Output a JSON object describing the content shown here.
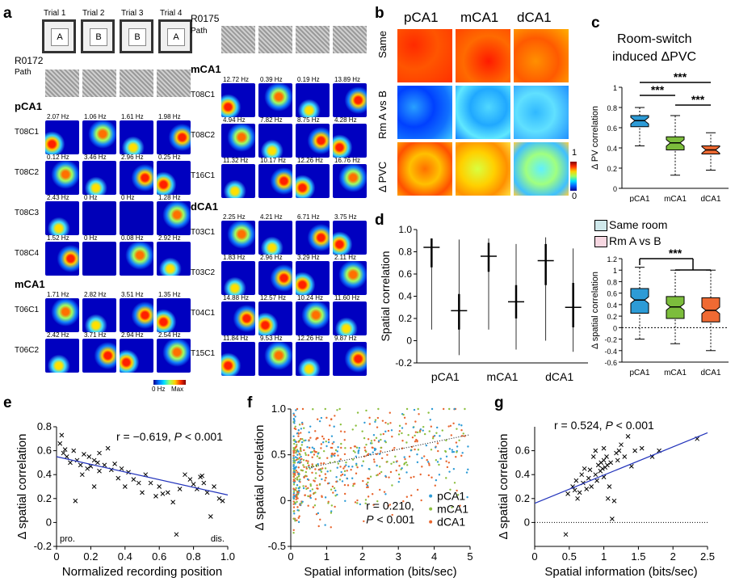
{
  "panel_a": {
    "label": "a",
    "trials": [
      {
        "name": "Trial 1",
        "room": "A"
      },
      {
        "name": "Trial 2",
        "room": "B"
      },
      {
        "name": "Trial 3",
        "room": "B"
      },
      {
        "name": "Trial 4",
        "room": "A"
      }
    ],
    "rat_left": "R0172",
    "rat_right": "R0175",
    "path_label": "Path",
    "colorbar_min": "0 Hz",
    "colorbar_max": "Max",
    "left_groups": [
      {
        "region": "pCA1",
        "cells": [
          {
            "id": "T08C1",
            "rates": [
              "2.07 Hz",
              "1.06 Hz",
              "1.61 Hz",
              "1.98 Hz"
            ]
          },
          {
            "id": "T08C2",
            "rates": [
              "0.12 Hz",
              "3.46 Hz",
              "2.96 Hz",
              "0.25 Hz"
            ]
          },
          {
            "id": "T08C3",
            "rates": [
              "2.43 Hz",
              "0 Hz",
              "0 Hz",
              "1.28 Hz"
            ]
          },
          {
            "id": "T08C4",
            "rates": [
              "1.52 Hz",
              "0 Hz",
              "0.08 Hz",
              "2.92 Hz"
            ]
          }
        ]
      },
      {
        "region": "mCA1",
        "cells": [
          {
            "id": "T06C1",
            "rates": [
              "1.71 Hz",
              "2.82 Hz",
              "3.51 Hz",
              "1.35 Hz"
            ]
          },
          {
            "id": "T06C2",
            "rates": [
              "2.42 Hz",
              "3.71 Hz",
              "2.94 Hz",
              "2.54 Hz"
            ]
          }
        ]
      }
    ],
    "right_groups": [
      {
        "region": "mCA1",
        "cells": [
          {
            "id": "T08C1",
            "rates": [
              "12.72 Hz",
              "0.39 Hz",
              "0.19 Hz",
              "13.89 Hz"
            ]
          },
          {
            "id": "T08C2",
            "rates": [
              "4.94 Hz",
              "7.82 Hz",
              "8.75 Hz",
              "4.28 Hz"
            ]
          },
          {
            "id": "T16C1",
            "rates": [
              "11.32 Hz",
              "10.17 Hz",
              "12.26 Hz",
              "16.76 Hz"
            ]
          }
        ]
      },
      {
        "region": "dCA1",
        "cells": [
          {
            "id": "T03C1",
            "rates": [
              "2.25 Hz",
              "4.21 Hz",
              "6.71 Hz",
              "3.75 Hz"
            ]
          },
          {
            "id": "T03C2",
            "rates": [
              "1.83 Hz",
              "2.96 Hz",
              "3.29 Hz",
              "2.11 Hz"
            ]
          },
          {
            "id": "T04C1",
            "rates": [
              "14.88 Hz",
              "12.57 Hz",
              "10.24 Hz",
              "11.60 Hz"
            ]
          },
          {
            "id": "T15C1",
            "rates": [
              "11.84 Hz",
              "9.53 Hz",
              "12.26 Hz",
              "9.87 Hz"
            ]
          }
        ]
      }
    ]
  },
  "panel_b": {
    "label": "b",
    "columns": [
      "pCA1",
      "mCA1",
      "dCA1"
    ],
    "rows": [
      "Same",
      "Rm A vs B",
      "Δ PVC"
    ],
    "colorbar_max": "1",
    "colorbar_min": "0"
  },
  "panel_c": {
    "label": "c",
    "title_line1": "Room-switch",
    "title_line2": "induced ΔPVC",
    "sig": [
      "***",
      "***",
      "***"
    ]
  },
  "panel_d": {
    "label": "d",
    "legend": [
      "Same room",
      "Rm A vs B"
    ],
    "sig": "***"
  },
  "panel_e": {
    "label": "e"
  },
  "panel_f": {
    "label": "f"
  },
  "panel_g": {
    "label": "g"
  },
  "chart_data": [
    {
      "id": "c",
      "type": "box",
      "title": "Room-switch induced ΔPVC",
      "ylabel": "Δ PV correlation",
      "ylim": [
        0,
        1
      ],
      "yticks": [
        "0",
        "0.2",
        "0.4",
        "0.6",
        "0.8",
        "1"
      ],
      "categories": [
        "pCA1",
        "mCA1",
        "dCA1"
      ],
      "colors": [
        "#2d9bd6",
        "#7cbd3c",
        "#ef6a33"
      ],
      "boxes": [
        {
          "min": 0.42,
          "q1": 0.61,
          "median": 0.67,
          "q3": 0.72,
          "max": 0.8
        },
        {
          "min": 0.13,
          "q1": 0.38,
          "median": 0.45,
          "q3": 0.51,
          "max": 0.72
        },
        {
          "min": 0.18,
          "q1": 0.34,
          "median": 0.38,
          "q3": 0.42,
          "max": 0.55
        }
      ]
    },
    {
      "id": "d-violin",
      "type": "violin",
      "ylabel": "Spatial correlation",
      "ylim": [
        -0.2,
        1.0
      ],
      "yticks": [
        "-0.2",
        "0",
        "0.2",
        "0.4",
        "0.6",
        "0.8",
        "1.0"
      ],
      "categories": [
        "pCA1",
        "mCA1",
        "dCA1"
      ],
      "series": [
        {
          "name": "Same room",
          "color": "#cfe8eb",
          "medians": [
            0.84,
            0.76,
            0.72
          ],
          "q1": [
            0.66,
            0.62,
            0.5
          ],
          "q3": [
            0.92,
            0.88,
            0.87
          ],
          "min": [
            0.05,
            0.05,
            -0.05
          ],
          "max": [
            0.97,
            0.97,
            0.98
          ]
        },
        {
          "name": "Rm A vs B",
          "color": "#f6d7e1",
          "medians": [
            0.27,
            0.35,
            0.3
          ],
          "q1": [
            0.1,
            0.2,
            0.12
          ],
          "q3": [
            0.42,
            0.5,
            0.52
          ],
          "min": [
            -0.18,
            -0.13,
            -0.15
          ],
          "max": [
            0.96,
            0.92,
            0.88
          ]
        }
      ]
    },
    {
      "id": "d-box",
      "type": "box",
      "ylabel": "Δ spatial correlation",
      "ylim": [
        -0.6,
        1.2
      ],
      "yticks": [
        "-0.6",
        "-0.4",
        "-0.2",
        "0",
        "0.2",
        "0.4",
        "0.6",
        "0.8",
        "1",
        "1.2"
      ],
      "categories": [
        "pCA1",
        "mCA1",
        "dCA1"
      ],
      "colors": [
        "#2d9bd6",
        "#7cbd3c",
        "#ef6a33"
      ],
      "boxes": [
        {
          "min": -0.2,
          "q1": 0.25,
          "median": 0.48,
          "q3": 0.68,
          "max": 1.05
        },
        {
          "min": -0.28,
          "q1": 0.16,
          "median": 0.36,
          "q3": 0.54,
          "max": 1.0
        },
        {
          "min": -0.4,
          "q1": 0.1,
          "median": 0.3,
          "q3": 0.52,
          "max": 1.0
        }
      ]
    },
    {
      "id": "e",
      "type": "scatter",
      "xlabel": "Normalized recording position",
      "ylabel": "Δ spatial correlation",
      "xlim": [
        0,
        1.0
      ],
      "ylim": [
        -0.2,
        0.8
      ],
      "xticks": [
        "0",
        "0.2",
        "0.4",
        "0.6",
        "0.8",
        "1.0"
      ],
      "yticks": [
        "-0.2",
        "0",
        "0.2",
        "0.4",
        "0.6",
        "0.8"
      ],
      "stat_r": "r = −0.619, ",
      "stat_p": "P",
      "stat_p_rest": " < 0.001",
      "annot_left": "pro.",
      "annot_right": "dis.",
      "fit": {
        "x": [
          0.0,
          1.0
        ],
        "y": [
          0.55,
          0.23
        ]
      },
      "points": [
        [
          0.02,
          0.66
        ],
        [
          0.03,
          0.73
        ],
        [
          0.04,
          0.58
        ],
        [
          0.05,
          0.61
        ],
        [
          0.06,
          0.55
        ],
        [
          0.08,
          0.5
        ],
        [
          0.1,
          0.6
        ],
        [
          0.12,
          0.52
        ],
        [
          0.14,
          0.48
        ],
        [
          0.15,
          0.4
        ],
        [
          0.16,
          0.57
        ],
        [
          0.18,
          0.45
        ],
        [
          0.19,
          0.55
        ],
        [
          0.2,
          0.47
        ],
        [
          0.22,
          0.52
        ],
        [
          0.22,
          0.3
        ],
        [
          0.24,
          0.5
        ],
        [
          0.25,
          0.43
        ],
        [
          0.28,
          0.48
        ],
        [
          0.3,
          0.62
        ],
        [
          0.32,
          0.44
        ],
        [
          0.34,
          0.49
        ],
        [
          0.36,
          0.37
        ],
        [
          0.38,
          0.45
        ],
        [
          0.4,
          0.3
        ],
        [
          0.42,
          0.42
        ],
        [
          0.45,
          0.36
        ],
        [
          0.48,
          0.33
        ],
        [
          0.5,
          0.25
        ],
        [
          0.52,
          0.4
        ],
        [
          0.55,
          0.33
        ],
        [
          0.58,
          0.22
        ],
        [
          0.6,
          0.3
        ],
        [
          0.62,
          0.24
        ],
        [
          0.65,
          0.25
        ],
        [
          0.68,
          0.17
        ],
        [
          0.7,
          -0.1
        ],
        [
          0.72,
          0.28
        ],
        [
          0.75,
          0.4
        ],
        [
          0.78,
          0.36
        ],
        [
          0.8,
          0.32
        ],
        [
          0.82,
          0.28
        ],
        [
          0.84,
          0.38
        ],
        [
          0.85,
          0.39
        ],
        [
          0.86,
          0.33
        ],
        [
          0.88,
          0.25
        ],
        [
          0.9,
          0.05
        ],
        [
          0.92,
          0.3
        ],
        [
          0.95,
          0.2
        ],
        [
          0.97,
          0.18
        ],
        [
          0.11,
          0.18
        ],
        [
          0.25,
          0.58
        ]
      ]
    },
    {
      "id": "f",
      "type": "scatter",
      "xlabel": "Spatial information (bits/sec)",
      "ylabel": "Δ spatial correlation",
      "xlim": [
        0,
        5
      ],
      "ylim": [
        -0.5,
        1.0
      ],
      "xticks": [
        "0",
        "1",
        "2",
        "3",
        "4",
        "5"
      ],
      "yticks": [
        "-0.5",
        "0",
        "0.5",
        "1.0"
      ],
      "stat_r": "r = 0.210,",
      "stat_p": "P",
      "stat_p_rest": " < 0.001",
      "legend": [
        {
          "name": "pCA1",
          "color": "#2d9bd6"
        },
        {
          "name": "mCA1",
          "color": "#8bbf3e"
        },
        {
          "name": "dCA1",
          "color": "#e8662f"
        }
      ],
      "trend": {
        "x": [
          0.5,
          5.0
        ],
        "y": [
          0.36,
          0.72
        ]
      }
    },
    {
      "id": "g",
      "type": "scatter",
      "xlabel": "Spatial information (bits/sec)",
      "ylabel": "Δ spatial correlation",
      "xlim": [
        0,
        2.5
      ],
      "ylim": [
        -0.2,
        0.8
      ],
      "xticks": [
        "0",
        "0.5",
        "1",
        "1.5",
        "2",
        "2.5"
      ],
      "yticks": [
        "0",
        "0.2",
        "0.4",
        "0.6"
      ],
      "stat_r": "r = 0.524, ",
      "stat_p": "P",
      "stat_p_rest": " < 0.001",
      "fit": {
        "x": [
          0.0,
          2.5
        ],
        "y": [
          0.16,
          0.75
        ]
      },
      "points": [
        [
          0.45,
          -0.1
        ],
        [
          0.48,
          0.24
        ],
        [
          0.55,
          0.3
        ],
        [
          0.58,
          0.27
        ],
        [
          0.6,
          0.35
        ],
        [
          0.62,
          0.2
        ],
        [
          0.65,
          0.25
        ],
        [
          0.68,
          0.4
        ],
        [
          0.7,
          0.33
        ],
        [
          0.72,
          0.45
        ],
        [
          0.75,
          0.28
        ],
        [
          0.78,
          0.37
        ],
        [
          0.8,
          0.44
        ],
        [
          0.82,
          0.3
        ],
        [
          0.85,
          0.55
        ],
        [
          0.88,
          0.4
        ],
        [
          0.9,
          0.35
        ],
        [
          0.92,
          0.48
        ],
        [
          0.95,
          0.43
        ],
        [
          0.96,
          0.5
        ],
        [
          0.98,
          0.45
        ],
        [
          1.0,
          0.52
        ],
        [
          1.0,
          0.38
        ],
        [
          1.02,
          0.46
        ],
        [
          1.04,
          0.55
        ],
        [
          1.05,
          0.48
        ],
        [
          1.06,
          0.2
        ],
        [
          1.08,
          0.3
        ],
        [
          1.1,
          0.5
        ],
        [
          1.12,
          0.03
        ],
        [
          1.15,
          0.18
        ],
        [
          1.18,
          0.58
        ],
        [
          1.2,
          0.52
        ],
        [
          1.22,
          0.6
        ],
        [
          1.25,
          0.65
        ],
        [
          1.3,
          0.55
        ],
        [
          1.35,
          0.72
        ],
        [
          1.4,
          0.47
        ],
        [
          1.45,
          0.6
        ],
        [
          1.55,
          0.62
        ],
        [
          1.7,
          0.55
        ],
        [
          1.8,
          0.6
        ],
        [
          2.35,
          0.7
        ],
        [
          0.88,
          0.6
        ],
        [
          1.0,
          0.62
        ]
      ]
    }
  ]
}
